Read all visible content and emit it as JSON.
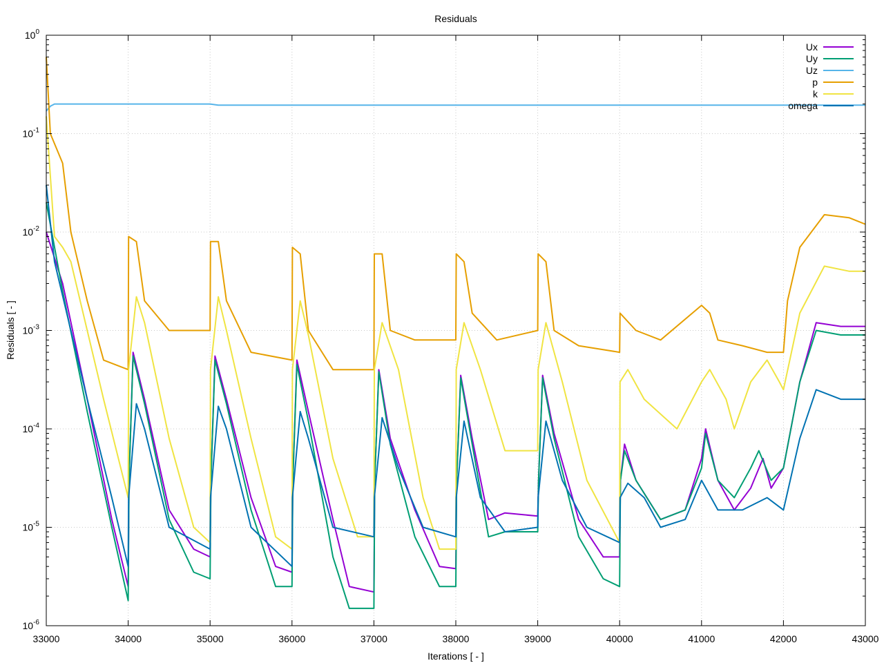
{
  "chart_data": {
    "type": "line",
    "title": "Residuals",
    "xlabel": "Iterations [ - ]",
    "ylabel": "Residuals [ - ]",
    "xlim": [
      33000,
      43000
    ],
    "ylim": [
      1e-06,
      1
    ],
    "yscale": "log",
    "grid": true,
    "legend_position": "top-right",
    "xticks": [
      "33000",
      "34000",
      "35000",
      "36000",
      "37000",
      "38000",
      "39000",
      "40000",
      "41000",
      "42000",
      "43000"
    ],
    "yticks": [
      {
        "base": "10",
        "exp": "-6"
      },
      {
        "base": "10",
        "exp": "-5"
      },
      {
        "base": "10",
        "exp": "-4"
      },
      {
        "base": "10",
        "exp": "-3"
      },
      {
        "base": "10",
        "exp": "-2"
      },
      {
        "base": "10",
        "exp": "-1"
      },
      {
        "base": "10",
        "exp": "0"
      }
    ],
    "series": [
      {
        "name": "Ux",
        "color": "#9400d3",
        "points": [
          [
            33000,
            0.01
          ],
          [
            33200,
            0.003
          ],
          [
            33500,
            0.0002
          ],
          [
            33800,
            1.2e-05
          ],
          [
            34000,
            2.5e-06
          ],
          [
            34010,
            3e-05
          ],
          [
            34060,
            0.0006
          ],
          [
            34200,
            0.0002
          ],
          [
            34500,
            1.5e-05
          ],
          [
            34800,
            6e-06
          ],
          [
            35000,
            5e-06
          ],
          [
            35010,
            3e-05
          ],
          [
            35060,
            0.00055
          ],
          [
            35200,
            0.0002
          ],
          [
            35500,
            2e-05
          ],
          [
            35800,
            4e-06
          ],
          [
            36000,
            3.5e-06
          ],
          [
            36010,
            3e-05
          ],
          [
            36060,
            0.0005
          ],
          [
            36200,
            0.00015
          ],
          [
            36500,
            1.2e-05
          ],
          [
            36700,
            2.5e-06
          ],
          [
            37000,
            2.2e-06
          ],
          [
            37010,
            3e-05
          ],
          [
            37060,
            0.0004
          ],
          [
            37200,
            8e-05
          ],
          [
            37500,
            1.5e-05
          ],
          [
            37800,
            4e-06
          ],
          [
            38000,
            3.8e-06
          ],
          [
            38010,
            3e-05
          ],
          [
            38060,
            0.00035
          ],
          [
            38200,
            8e-05
          ],
          [
            38400,
            1.2e-05
          ],
          [
            38600,
            1.4e-05
          ],
          [
            39000,
            1.3e-05
          ],
          [
            39010,
            3e-05
          ],
          [
            39060,
            0.00035
          ],
          [
            39200,
            9e-05
          ],
          [
            39500,
            1.2e-05
          ],
          [
            39800,
            5e-06
          ],
          [
            40000,
            5e-06
          ],
          [
            40010,
            3e-05
          ],
          [
            40060,
            7e-05
          ],
          [
            40200,
            3e-05
          ],
          [
            40500,
            1.2e-05
          ],
          [
            40800,
            1.5e-05
          ],
          [
            41000,
            5e-05
          ],
          [
            41050,
            0.0001
          ],
          [
            41200,
            3e-05
          ],
          [
            41400,
            1.5e-05
          ],
          [
            41600,
            2.5e-05
          ],
          [
            41750,
            5e-05
          ],
          [
            41850,
            2.5e-05
          ],
          [
            42000,
            4e-05
          ],
          [
            42200,
            0.0003
          ],
          [
            42400,
            0.0012
          ],
          [
            42700,
            0.0011
          ],
          [
            43000,
            0.0011
          ]
        ]
      },
      {
        "name": "Uy",
        "color": "#009e73",
        "points": [
          [
            33000,
            0.02
          ],
          [
            33200,
            0.0025
          ],
          [
            33500,
            0.00015
          ],
          [
            33800,
            1e-05
          ],
          [
            34000,
            1.8e-06
          ],
          [
            34010,
            3e-05
          ],
          [
            34060,
            0.00055
          ],
          [
            34200,
            0.00018
          ],
          [
            34500,
            1.2e-05
          ],
          [
            34800,
            3.5e-06
          ],
          [
            35000,
            3e-06
          ],
          [
            35010,
            3e-05
          ],
          [
            35060,
            0.0005
          ],
          [
            35200,
            0.00018
          ],
          [
            35500,
            1.5e-05
          ],
          [
            35800,
            2.5e-06
          ],
          [
            36000,
            2.5e-06
          ],
          [
            36010,
            3e-05
          ],
          [
            36060,
            0.00045
          ],
          [
            36200,
            0.00012
          ],
          [
            36500,
            5e-06
          ],
          [
            36700,
            1.5e-06
          ],
          [
            37000,
            1.5e-06
          ],
          [
            37010,
            3e-05
          ],
          [
            37060,
            0.00038
          ],
          [
            37200,
            7e-05
          ],
          [
            37500,
            8e-06
          ],
          [
            37800,
            2.5e-06
          ],
          [
            38000,
            2.5e-06
          ],
          [
            38010,
            3e-05
          ],
          [
            38060,
            0.00033
          ],
          [
            38200,
            7e-05
          ],
          [
            38400,
            8e-06
          ],
          [
            38600,
            9e-06
          ],
          [
            39000,
            9e-06
          ],
          [
            39010,
            3e-05
          ],
          [
            39060,
            0.00033
          ],
          [
            39200,
            8e-05
          ],
          [
            39500,
            8e-06
          ],
          [
            39800,
            3e-06
          ],
          [
            40000,
            2.5e-06
          ],
          [
            40010,
            3e-05
          ],
          [
            40060,
            6e-05
          ],
          [
            40200,
            3e-05
          ],
          [
            40500,
            1.2e-05
          ],
          [
            40800,
            1.5e-05
          ],
          [
            41000,
            4e-05
          ],
          [
            41050,
            9e-05
          ],
          [
            41200,
            3e-05
          ],
          [
            41400,
            2e-05
          ],
          [
            41600,
            4e-05
          ],
          [
            41700,
            6e-05
          ],
          [
            41850,
            3e-05
          ],
          [
            42000,
            4e-05
          ],
          [
            42200,
            0.0003
          ],
          [
            42400,
            0.001
          ],
          [
            42700,
            0.0009
          ],
          [
            43000,
            0.0009
          ]
        ]
      },
      {
        "name": "Uz",
        "color": "#56b4e9",
        "points": [
          [
            33000,
            0.17
          ],
          [
            33050,
            0.19
          ],
          [
            33100,
            0.2
          ],
          [
            33300,
            0.2
          ],
          [
            35000,
            0.2
          ],
          [
            35100,
            0.195
          ],
          [
            37000,
            0.195
          ],
          [
            39000,
            0.195
          ],
          [
            41000,
            0.195
          ],
          [
            43000,
            0.195
          ]
        ]
      },
      {
        "name": "p",
        "color": "#e69f00",
        "points": [
          [
            33000,
            0.6
          ],
          [
            33050,
            0.1
          ],
          [
            33200,
            0.05
          ],
          [
            33300,
            0.01
          ],
          [
            33500,
            0.002
          ],
          [
            33700,
            0.0005
          ],
          [
            34000,
            0.0004
          ],
          [
            34005,
            0.009
          ],
          [
            34100,
            0.008
          ],
          [
            34200,
            0.002
          ],
          [
            34500,
            0.001
          ],
          [
            35000,
            0.001
          ],
          [
            35005,
            0.008
          ],
          [
            35100,
            0.008
          ],
          [
            35200,
            0.002
          ],
          [
            35500,
            0.0006
          ],
          [
            36000,
            0.0005
          ],
          [
            36005,
            0.007
          ],
          [
            36100,
            0.006
          ],
          [
            36200,
            0.001
          ],
          [
            36500,
            0.0004
          ],
          [
            37000,
            0.0004
          ],
          [
            37005,
            0.006
          ],
          [
            37100,
            0.006
          ],
          [
            37200,
            0.001
          ],
          [
            37500,
            0.0008
          ],
          [
            38000,
            0.0008
          ],
          [
            38005,
            0.006
          ],
          [
            38100,
            0.005
          ],
          [
            38200,
            0.0015
          ],
          [
            38500,
            0.0008
          ],
          [
            39000,
            0.001
          ],
          [
            39005,
            0.006
          ],
          [
            39100,
            0.005
          ],
          [
            39200,
            0.001
          ],
          [
            39500,
            0.0007
          ],
          [
            40000,
            0.0006
          ],
          [
            40005,
            0.0015
          ],
          [
            40200,
            0.001
          ],
          [
            40500,
            0.0008
          ],
          [
            41000,
            0.0018
          ],
          [
            41100,
            0.0015
          ],
          [
            41200,
            0.0008
          ],
          [
            41500,
            0.0007
          ],
          [
            41800,
            0.0006
          ],
          [
            42000,
            0.0006
          ],
          [
            42050,
            0.002
          ],
          [
            42200,
            0.007
          ],
          [
            42500,
            0.015
          ],
          [
            42800,
            0.014
          ],
          [
            43000,
            0.012
          ]
        ]
      },
      {
        "name": "k",
        "color": "#f0e442",
        "points": [
          [
            33000,
            0.15
          ],
          [
            33100,
            0.009
          ],
          [
            33200,
            0.007
          ],
          [
            33300,
            0.005
          ],
          [
            33500,
            0.001
          ],
          [
            33700,
            0.0002
          ],
          [
            34000,
            2e-05
          ],
          [
            34005,
            0.0004
          ],
          [
            34100,
            0.0022
          ],
          [
            34200,
            0.0012
          ],
          [
            34500,
            8e-05
          ],
          [
            34800,
            1e-05
          ],
          [
            35000,
            7e-06
          ],
          [
            35005,
            0.0004
          ],
          [
            35100,
            0.0022
          ],
          [
            35200,
            0.001
          ],
          [
            35500,
            8e-05
          ],
          [
            35800,
            8e-06
          ],
          [
            36000,
            6e-06
          ],
          [
            36005,
            0.0004
          ],
          [
            36100,
            0.002
          ],
          [
            36200,
            0.0009
          ],
          [
            36500,
            5e-05
          ],
          [
            36800,
            8e-06
          ],
          [
            37000,
            8e-06
          ],
          [
            37005,
            0.0004
          ],
          [
            37100,
            0.0012
          ],
          [
            37300,
            0.0004
          ],
          [
            37600,
            2e-05
          ],
          [
            37800,
            6e-06
          ],
          [
            38000,
            6e-06
          ],
          [
            38005,
            0.0004
          ],
          [
            38100,
            0.0012
          ],
          [
            38300,
            0.0004
          ],
          [
            38600,
            6e-05
          ],
          [
            38800,
            6e-05
          ],
          [
            39000,
            6e-05
          ],
          [
            39005,
            0.0004
          ],
          [
            39100,
            0.0012
          ],
          [
            39300,
            0.0003
          ],
          [
            39600,
            3e-05
          ],
          [
            40000,
            7e-06
          ],
          [
            40005,
            0.0003
          ],
          [
            40100,
            0.0004
          ],
          [
            40300,
            0.0002
          ],
          [
            40700,
            0.0001
          ],
          [
            41000,
            0.0003
          ],
          [
            41100,
            0.0004
          ],
          [
            41300,
            0.0002
          ],
          [
            41400,
            0.0001
          ],
          [
            41600,
            0.0003
          ],
          [
            41800,
            0.0005
          ],
          [
            41950,
            0.0003
          ],
          [
            42000,
            0.00025
          ],
          [
            42200,
            0.0015
          ],
          [
            42500,
            0.0045
          ],
          [
            42800,
            0.004
          ],
          [
            43000,
            0.004
          ]
        ]
      },
      {
        "name": "omega",
        "color": "#0072b2",
        "points": [
          [
            33000,
            0.03
          ],
          [
            33100,
            0.005
          ],
          [
            33300,
            0.001
          ],
          [
            33500,
            0.0002
          ],
          [
            33800,
            2e-05
          ],
          [
            34000,
            4e-06
          ],
          [
            34005,
            2e-05
          ],
          [
            34100,
            0.00018
          ],
          [
            34200,
            0.0001
          ],
          [
            34500,
            1e-05
          ],
          [
            35000,
            6e-06
          ],
          [
            35005,
            2e-05
          ],
          [
            35100,
            0.00017
          ],
          [
            35200,
            0.0001
          ],
          [
            35500,
            1e-05
          ],
          [
            36000,
            4e-06
          ],
          [
            36005,
            2e-05
          ],
          [
            36100,
            0.00015
          ],
          [
            36200,
            8e-05
          ],
          [
            36500,
            1e-05
          ],
          [
            37000,
            8e-06
          ],
          [
            37005,
            2e-05
          ],
          [
            37100,
            0.00013
          ],
          [
            37300,
            4e-05
          ],
          [
            37600,
            1e-05
          ],
          [
            38000,
            8e-06
          ],
          [
            38005,
            2e-05
          ],
          [
            38100,
            0.00012
          ],
          [
            38300,
            2e-05
          ],
          [
            38600,
            9e-06
          ],
          [
            39000,
            1e-05
          ],
          [
            39005,
            2e-05
          ],
          [
            39100,
            0.00012
          ],
          [
            39300,
            3e-05
          ],
          [
            39600,
            1e-05
          ],
          [
            40000,
            7e-06
          ],
          [
            40005,
            2e-05
          ],
          [
            40100,
            2.8e-05
          ],
          [
            40300,
            2e-05
          ],
          [
            40500,
            1e-05
          ],
          [
            40800,
            1.2e-05
          ],
          [
            41000,
            3e-05
          ],
          [
            41200,
            1.5e-05
          ],
          [
            41500,
            1.5e-05
          ],
          [
            41800,
            2e-05
          ],
          [
            42000,
            1.5e-05
          ],
          [
            42200,
            8e-05
          ],
          [
            42400,
            0.00025
          ],
          [
            42700,
            0.0002
          ],
          [
            43000,
            0.0002
          ]
        ]
      }
    ]
  }
}
